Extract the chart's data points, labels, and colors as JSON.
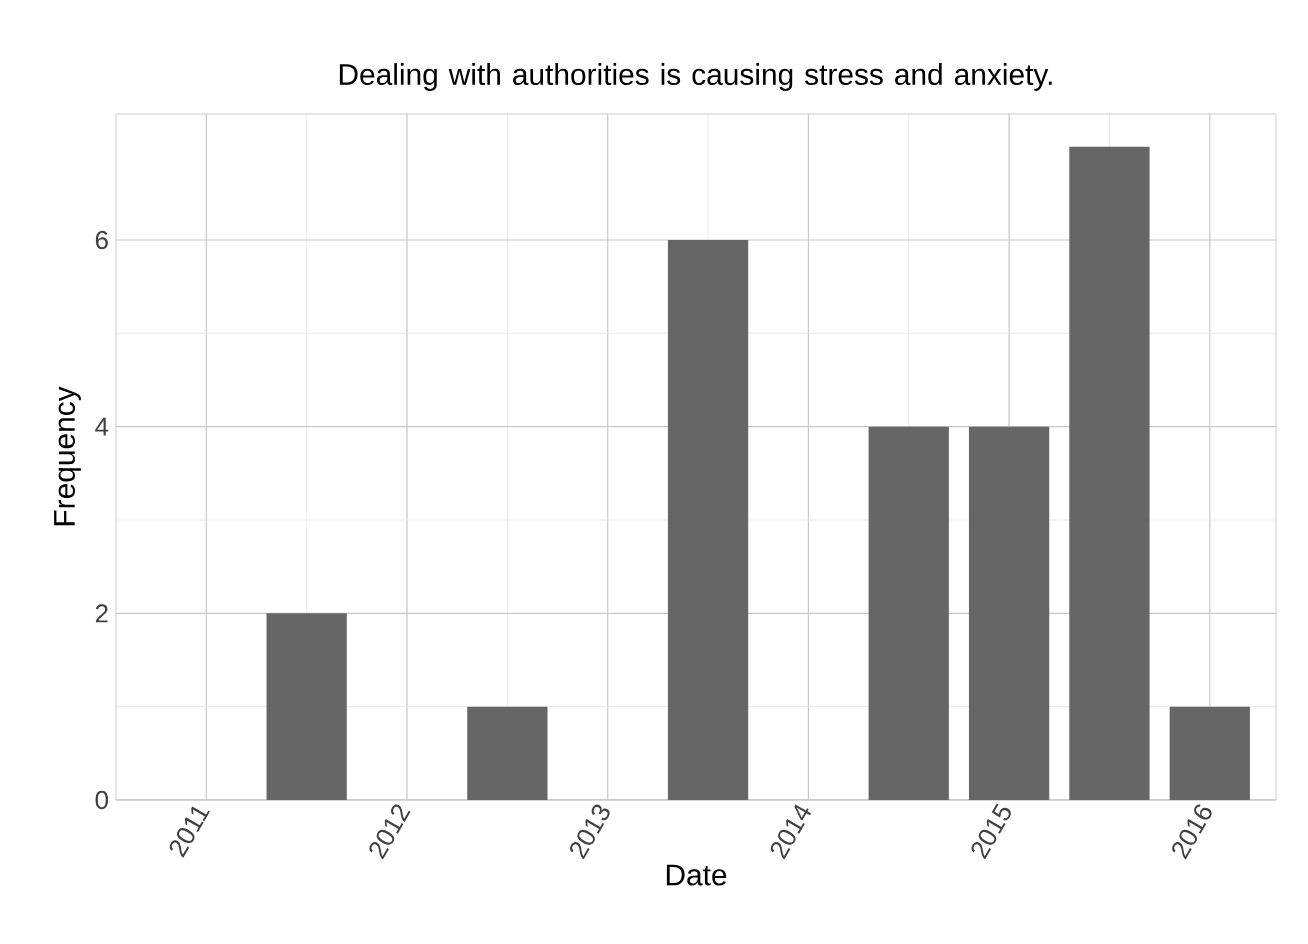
{
  "chart_data": {
    "type": "bar",
    "title": "Dealing with authorities is causing stress and anxiety.",
    "xlabel": "Date",
    "ylabel": "Frequency",
    "x": [
      "2011-07",
      "2012-07",
      "2013-07",
      "2014-07",
      "2015-01",
      "2015-07",
      "2016-01"
    ],
    "values": [
      2,
      1,
      6,
      4,
      4,
      7,
      1
    ],
    "color": "#666666",
    "xlim": [
      "2010-07-20",
      "2016-05-01"
    ],
    "ylim": [
      0,
      7.35
    ],
    "xticks": [
      "2011",
      "2012",
      "2013",
      "2014",
      "2015",
      "2016"
    ],
    "yticks": [
      0,
      2,
      4,
      6
    ],
    "grid": true
  }
}
